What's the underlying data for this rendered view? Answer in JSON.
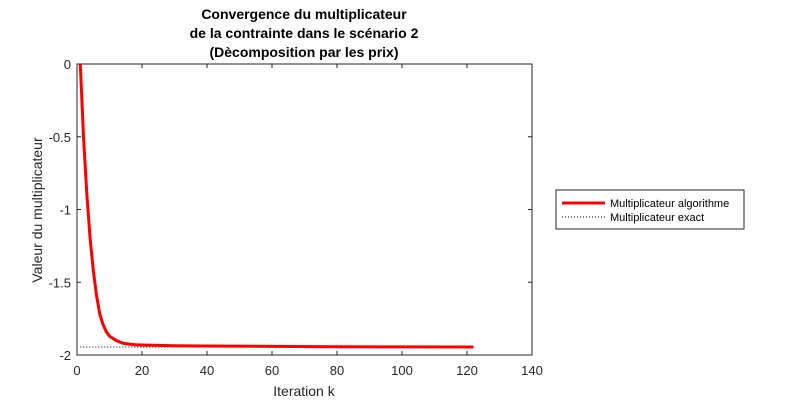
{
  "chart_data": {
    "type": "line",
    "title": [
      "Convergence du multiplicateur",
      "de la contrainte dans le scénario 2",
      "(Dècomposition par les prix)"
    ],
    "xlabel": "Iteration k",
    "ylabel": "Valeur du multiplicateur",
    "xlim": [
      0,
      140
    ],
    "ylim": [
      -2,
      0
    ],
    "xticks": [
      "0",
      "20",
      "40",
      "60",
      "80",
      "100",
      "120",
      "140"
    ],
    "yticks": [
      "0",
      "-0.5",
      "-1",
      "-1.5",
      "-2"
    ],
    "legend_position": "outside-right",
    "grid": false,
    "series": [
      {
        "name": "Multiplicateur algorithme",
        "style": "solid",
        "color": "#ff0000",
        "x": [
          1,
          2,
          3,
          4,
          5,
          6,
          7,
          8,
          9,
          10,
          12,
          14,
          16,
          18,
          20,
          25,
          30,
          40,
          60,
          80,
          100,
          122
        ],
        "y": [
          0,
          -0.5,
          -0.89,
          -1.19,
          -1.42,
          -1.59,
          -1.72,
          -1.79,
          -1.84,
          -1.87,
          -1.9,
          -1.918,
          -1.925,
          -1.929,
          -1.931,
          -1.934,
          -1.936,
          -1.938,
          -1.941,
          -1.943,
          -1.944,
          -1.945
        ]
      },
      {
        "name": "Multiplicateur exact",
        "style": "dotted",
        "color": "#000000",
        "x": [
          1,
          122
        ],
        "y": [
          -1.945,
          -1.945
        ]
      }
    ]
  }
}
